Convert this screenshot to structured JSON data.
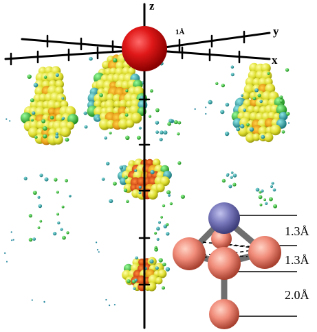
{
  "axes": {
    "z_label": "z",
    "y_label": "y",
    "x_label": "x",
    "scale_label": "1Å"
  },
  "distances": [
    {
      "label": "1.3Å"
    },
    {
      "label": "1.3Å"
    },
    {
      "label": "2.0Å"
    }
  ],
  "colors": {
    "central_atom": "#d41414",
    "apex_atom": "#7777bb",
    "cluster_atoms": "#f08a78",
    "bonds": "#6f6f6f",
    "density_lobe_outer": "#e4e432",
    "density_lobe_core": "#d8480a",
    "density_points": "#1f9a9a"
  }
}
